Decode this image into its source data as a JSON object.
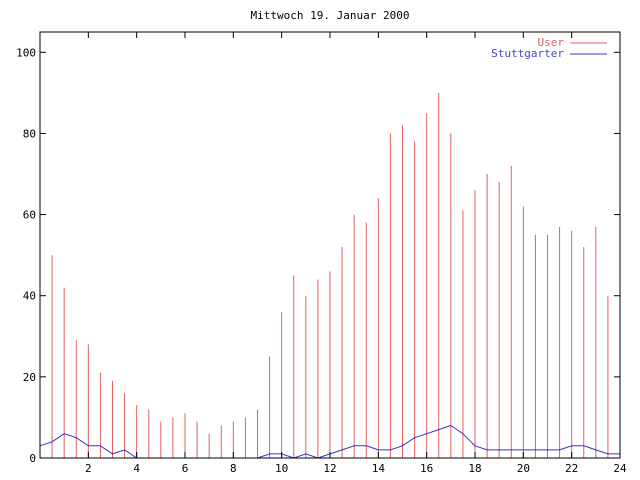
{
  "chart_data": {
    "type": "bar",
    "title": "Mittwoch 19. Januar 2000",
    "xlabel": "",
    "ylabel": "",
    "xlim": [
      0,
      24
    ],
    "ylim": [
      0,
      105
    ],
    "x_ticks": [
      "2",
      "4",
      "6",
      "8",
      "10",
      "12",
      "14",
      "16",
      "18",
      "20",
      "22",
      "24"
    ],
    "y_ticks": [
      "0",
      "20",
      "40",
      "60",
      "80",
      "100"
    ],
    "legend_position": "top-right",
    "series": [
      {
        "name": "User",
        "style": "impulses",
        "color": "#e06060",
        "x": [
          0.0,
          0.5,
          1.0,
          1.5,
          2.0,
          2.5,
          3.0,
          3.5,
          4.0,
          4.5,
          5.0,
          5.5,
          6.0,
          6.5,
          7.0,
          7.5,
          8.0,
          8.5,
          9.0,
          9.5,
          10.0,
          10.5,
          11.0,
          11.5,
          12.0,
          12.5,
          13.0,
          13.5,
          14.0,
          14.5,
          15.0,
          15.5,
          16.0,
          16.5,
          17.0,
          17.5,
          18.0,
          18.5,
          19.0,
          19.5,
          20.0,
          20.5,
          21.0,
          21.5,
          22.0,
          22.5,
          23.0,
          23.5,
          24.0
        ],
        "values": [
          48,
          50,
          42,
          29,
          28,
          21,
          19,
          16,
          13,
          12,
          9,
          10,
          11,
          9,
          6,
          8,
          9,
          10,
          12,
          25,
          36,
          45,
          40,
          44,
          46,
          52,
          60,
          58,
          64,
          80,
          82,
          78,
          85,
          90,
          80,
          61,
          66,
          70,
          68,
          72,
          62,
          55,
          55,
          57,
          56,
          52,
          57,
          40,
          43
        ]
      },
      {
        "name": "Stuttgarter",
        "style": "line",
        "color": "#3333cc",
        "x": [
          0.0,
          0.5,
          1.0,
          1.5,
          2.0,
          2.5,
          3.0,
          3.5,
          4.0,
          4.5,
          5.0,
          5.5,
          6.0,
          6.5,
          7.0,
          7.5,
          8.0,
          8.5,
          9.0,
          9.5,
          10.0,
          10.5,
          11.0,
          11.5,
          12.0,
          12.5,
          13.0,
          13.5,
          14.0,
          14.5,
          15.0,
          15.5,
          16.0,
          16.5,
          17.0,
          17.5,
          18.0,
          18.5,
          19.0,
          19.5,
          20.0,
          20.5,
          21.0,
          21.5,
          22.0,
          22.5,
          23.0,
          23.5,
          24.0
        ],
        "values": [
          3,
          4,
          6,
          5,
          3,
          3,
          1,
          2,
          0,
          0,
          0,
          0,
          0,
          0,
          0,
          0,
          0,
          0,
          0,
          1,
          1,
          0,
          1,
          0,
          1,
          2,
          3,
          3,
          2,
          2,
          3,
          5,
          6,
          7,
          8,
          6,
          3,
          2,
          2,
          2,
          2,
          2,
          2,
          2,
          3,
          3,
          2,
          1,
          1
        ]
      }
    ]
  }
}
